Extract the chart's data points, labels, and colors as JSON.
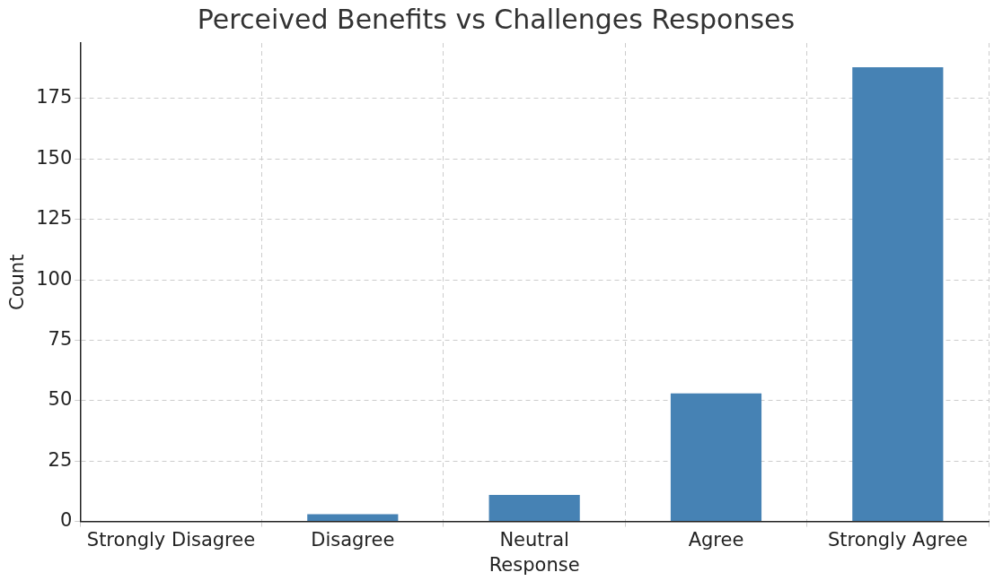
{
  "chart_data": {
    "type": "bar",
    "title": "Perceived Benefits vs Challenges Responses",
    "xlabel": "Response",
    "ylabel": "Count",
    "categories": [
      "Strongly Disagree",
      "Disagree",
      "Neutral",
      "Agree",
      "Strongly Agree"
    ],
    "values": [
      0,
      3,
      11,
      53,
      188
    ],
    "color": "#4682b4",
    "ylim": [
      0,
      198
    ],
    "yticks": [
      0,
      25,
      50,
      75,
      100,
      125,
      150,
      175
    ],
    "grid": true,
    "legend": false
  }
}
